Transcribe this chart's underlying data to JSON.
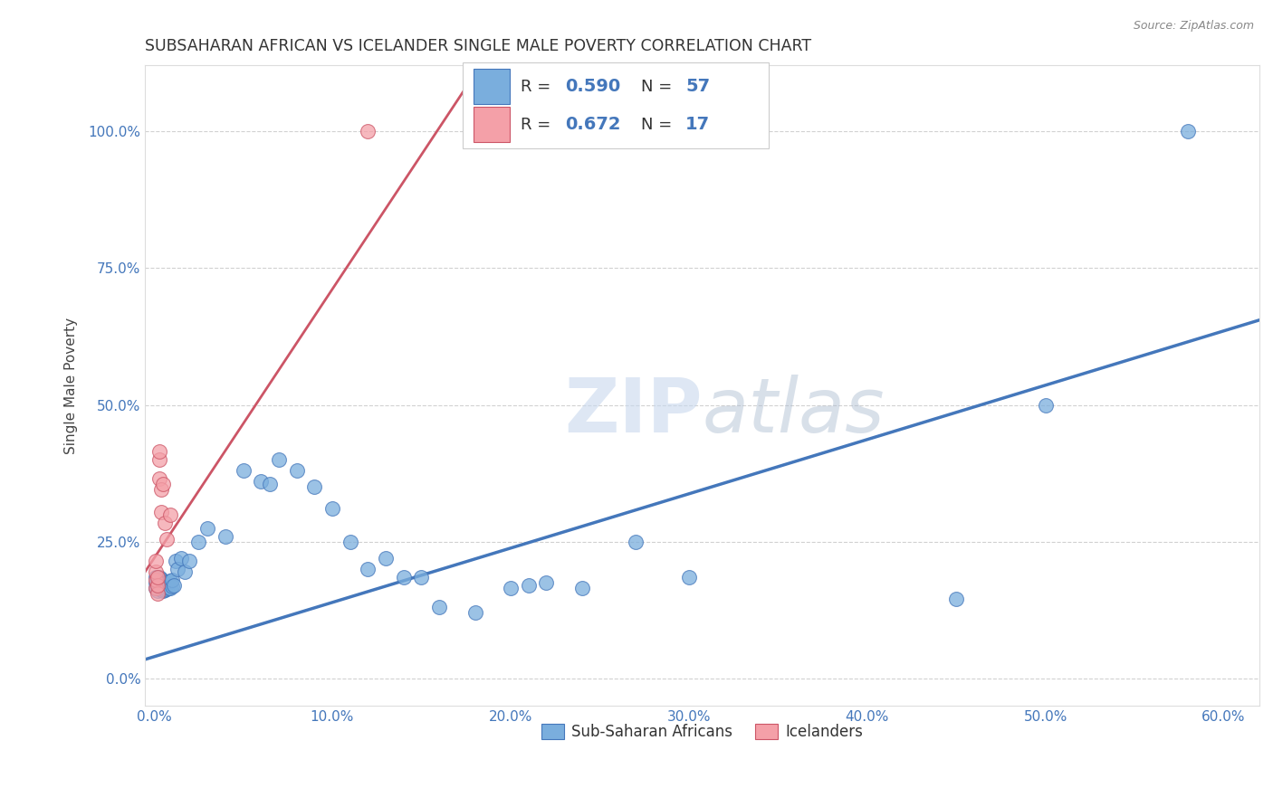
{
  "title": "SUBSAHARAN AFRICAN VS ICELANDER SINGLE MALE POVERTY CORRELATION CHART",
  "source": "Source: ZipAtlas.com",
  "ylabel": "Single Male Poverty",
  "legend_labels": [
    "Sub-Saharan Africans",
    "Icelanders"
  ],
  "blue_R": "0.590",
  "blue_N": "57",
  "pink_R": "0.672",
  "pink_N": "17",
  "blue_color": "#7aaedd",
  "pink_color": "#f4a0a8",
  "blue_line_color": "#4477bb",
  "pink_line_color": "#cc5566",
  "blue_edge_color": "#4477bb",
  "pink_edge_color": "#cc5566",
  "xlim": [
    -0.005,
    0.62
  ],
  "ylim": [
    -0.05,
    1.12
  ],
  "xticks": [
    0.0,
    0.1,
    0.2,
    0.3,
    0.4,
    0.5,
    0.6
  ],
  "yticks": [
    0.0,
    0.25,
    0.5,
    0.75,
    1.0
  ],
  "xtick_labels": [
    "0.0%",
    "10.0%",
    "20.0%",
    "30.0%",
    "40.0%",
    "50.0%",
    "60.0%"
  ],
  "ytick_labels": [
    "0.0%",
    "25.0%",
    "50.0%",
    "75.0%",
    "100.0%"
  ],
  "blue_line": {
    "x0": -0.01,
    "x1": 0.62,
    "y0": 0.03,
    "y1": 0.655
  },
  "pink_line": {
    "x0": -0.005,
    "x1": 0.175,
    "y0": 0.195,
    "y1": 1.08
  },
  "blue_x": [
    0.001,
    0.001,
    0.001,
    0.002,
    0.002,
    0.002,
    0.003,
    0.003,
    0.003,
    0.004,
    0.004,
    0.004,
    0.005,
    0.005,
    0.005,
    0.006,
    0.006,
    0.007,
    0.007,
    0.008,
    0.008,
    0.009,
    0.009,
    0.01,
    0.01,
    0.011,
    0.012,
    0.013,
    0.015,
    0.017,
    0.02,
    0.025,
    0.03,
    0.04,
    0.05,
    0.06,
    0.065,
    0.07,
    0.08,
    0.09,
    0.1,
    0.11,
    0.12,
    0.13,
    0.14,
    0.15,
    0.16,
    0.18,
    0.2,
    0.21,
    0.22,
    0.24,
    0.27,
    0.3,
    0.45,
    0.5,
    0.58
  ],
  "blue_y": [
    0.165,
    0.175,
    0.185,
    0.16,
    0.17,
    0.18,
    0.165,
    0.175,
    0.185,
    0.162,
    0.172,
    0.182,
    0.16,
    0.17,
    0.178,
    0.162,
    0.175,
    0.163,
    0.175,
    0.165,
    0.177,
    0.165,
    0.178,
    0.168,
    0.18,
    0.17,
    0.215,
    0.2,
    0.22,
    0.195,
    0.215,
    0.25,
    0.275,
    0.26,
    0.38,
    0.36,
    0.355,
    0.4,
    0.38,
    0.35,
    0.31,
    0.25,
    0.2,
    0.22,
    0.185,
    0.185,
    0.13,
    0.12,
    0.165,
    0.17,
    0.175,
    0.165,
    0.25,
    0.185,
    0.145,
    0.5,
    1.0
  ],
  "pink_x": [
    0.001,
    0.001,
    0.001,
    0.001,
    0.002,
    0.002,
    0.002,
    0.003,
    0.003,
    0.003,
    0.004,
    0.004,
    0.005,
    0.006,
    0.007,
    0.009,
    0.12
  ],
  "pink_y": [
    0.165,
    0.18,
    0.195,
    0.215,
    0.155,
    0.17,
    0.185,
    0.365,
    0.4,
    0.415,
    0.305,
    0.345,
    0.355,
    0.285,
    0.255,
    0.3,
    1.0
  ]
}
